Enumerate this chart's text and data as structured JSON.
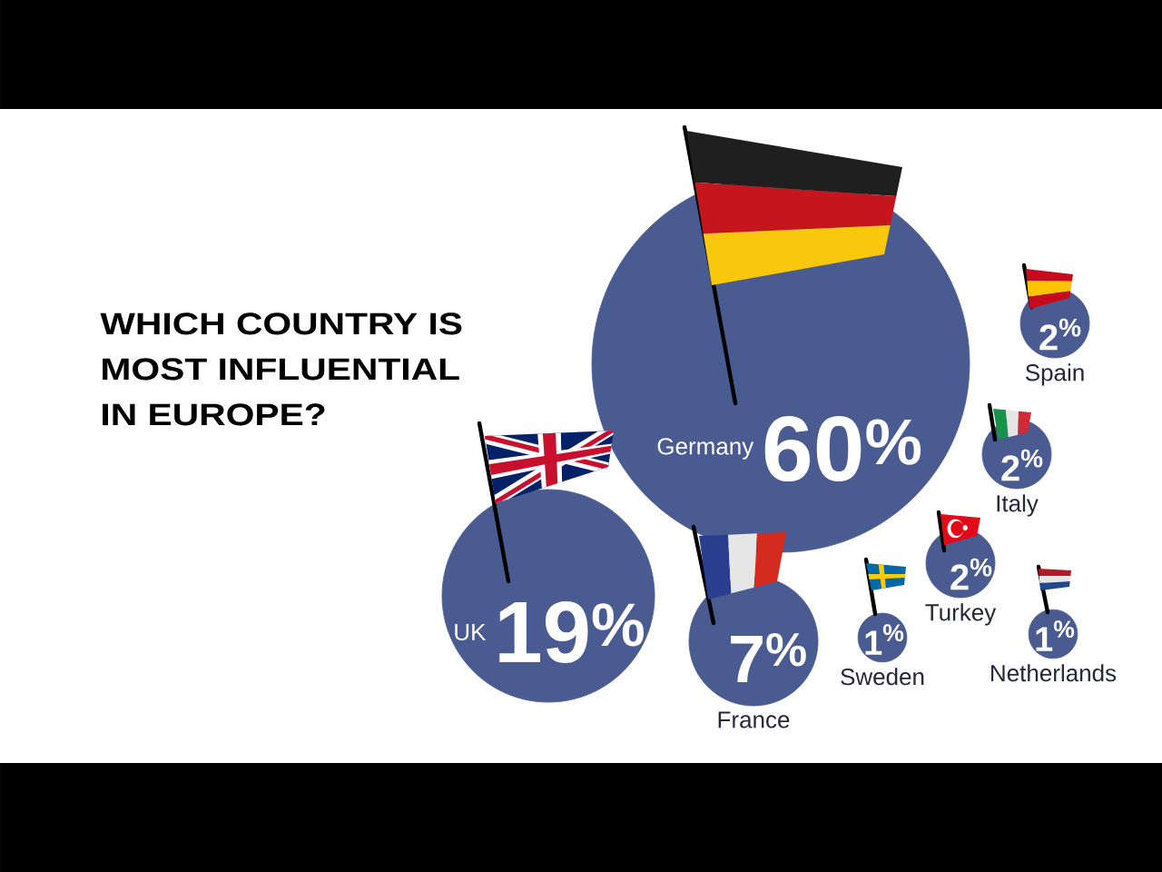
{
  "chart_data": {
    "type": "other",
    "title": "WHICH COUNTRY IS MOST INFLUENTIAL IN EUROPE?",
    "categories": [
      "Germany",
      "UK",
      "France",
      "Spain",
      "Italy",
      "Turkey",
      "Sweden",
      "Netherlands"
    ],
    "values": [
      60,
      19,
      7,
      2,
      2,
      2,
      1,
      1
    ],
    "value_labels": [
      "60$^{%}$",
      "19$^{%}$",
      "7$^{%}$",
      "2$^{%}$",
      "2$^{%}$",
      "2$^{%}$",
      "1$^{%}$",
      "1$^{%}$"
    ],
    "color": "#4a5b91"
  }
}
